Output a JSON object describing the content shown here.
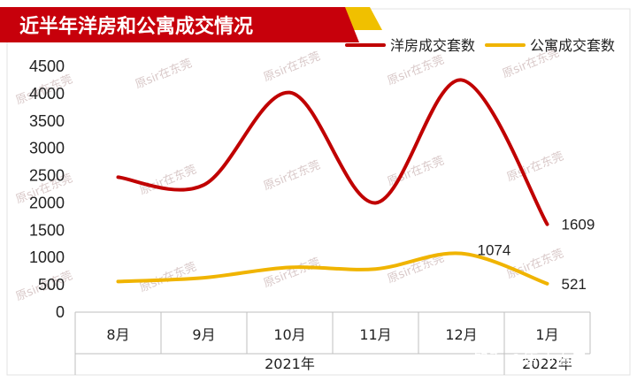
{
  "title": "近半年洋房和公寓成交情况",
  "watermark": "原sir在东莞",
  "footer_watermark": "知乎 @原sir看房",
  "colors": {
    "banner": "#c7000b",
    "banner_accent": "#f0c000",
    "series_villa": "#c00000",
    "series_apartment": "#f0b400",
    "axis": "#bfbfbf"
  },
  "chart_data": {
    "type": "line",
    "categories": [
      "8月",
      "9月",
      "10月",
      "11月",
      "12月",
      "1月"
    ],
    "category_groups": [
      {
        "label": "2021年",
        "span": [
          0,
          4
        ]
      },
      {
        "label": "2022年",
        "span": [
          5,
          5
        ]
      }
    ],
    "series": [
      {
        "name": "洋房成交套数",
        "values": [
          2470,
          2330,
          4020,
          2000,
          4250,
          1609
        ],
        "color": "#c00000"
      },
      {
        "name": "公寓成交套数",
        "values": [
          560,
          630,
          820,
          790,
          1074,
          521
        ],
        "color": "#f0b400"
      }
    ],
    "data_labels": [
      {
        "series": 0,
        "index": 5,
        "text": "1609"
      },
      {
        "series": 1,
        "index": 4,
        "text": "1074"
      },
      {
        "series": 1,
        "index": 5,
        "text": "521"
      }
    ],
    "ylim": [
      0,
      4500
    ],
    "yticks": [
      0,
      500,
      1000,
      1500,
      2000,
      2500,
      3000,
      3500,
      4000,
      4500
    ],
    "smooth": true,
    "grid": false,
    "legend_position": "top-right"
  }
}
